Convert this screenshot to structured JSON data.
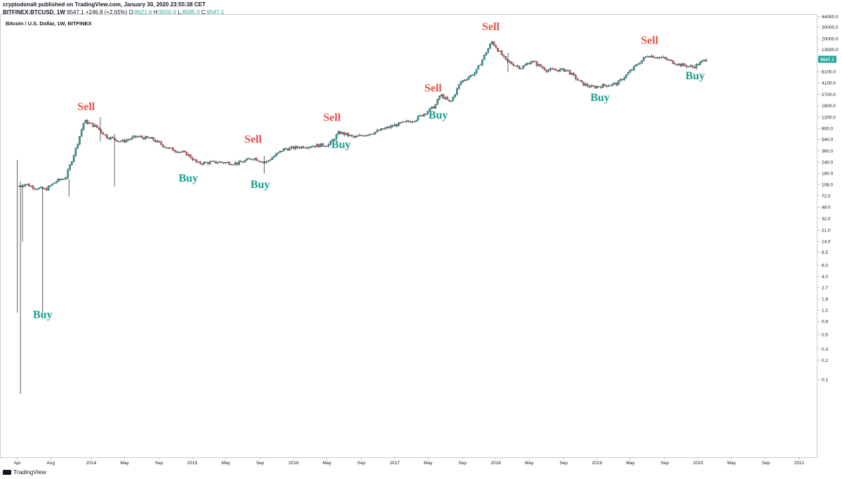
{
  "header": {
    "line1": "cryptodonalt published on TradingView.com, January 30, 2020 23:55:38 CET",
    "symbol": "BITFINEX:BTCUSD, 1W",
    "last": "9547.1",
    "change": "+246.8 (+2.65%)",
    "o_label": "O:",
    "o_val": "8621.6",
    "h_label": "H:",
    "h_val": "9550.0",
    "l_label": "L:",
    "l_val": "8585.0",
    "c_label": "C:",
    "c_val": "9547.1"
  },
  "series_title": "Bitcoin / U.S. Dollar, 1W, BITFINEX",
  "footer": {
    "brand": "TradingView"
  },
  "colors": {
    "up": "#26a69a",
    "down": "#ef5350",
    "buy": "#1a9e8f",
    "sell": "#e5534b",
    "label_bg": "#26a69a"
  },
  "chart_data": {
    "type": "candlestick",
    "title": "Bitcoin / U.S. Dollar, 1W, BITFINEX",
    "scale": "logarithmic",
    "x_ticks": [
      "Apr",
      "Aug",
      "2014",
      "May",
      "Sep",
      "2015",
      "May",
      "Sep",
      "2016",
      "May",
      "Sep",
      "2017",
      "May",
      "Sep",
      "2018",
      "May",
      "Sep",
      "2019",
      "May",
      "Sep",
      "2020",
      "May",
      "Sep",
      "2021"
    ],
    "y_ticks": [
      "44000.0",
      "30000.0",
      "20000.0",
      "13500.0",
      "9547.1",
      "6100.0",
      "4100.0",
      "2700.0",
      "1800.0",
      "1200.0",
      "800.0",
      "540.0",
      "360.0",
      "240.0",
      "160.0",
      "108.0",
      "72.0",
      "48.0",
      "32.0",
      "21.0",
      "14.0",
      "9.5",
      "6.0",
      "4.0",
      "2.7",
      "1.8",
      "1.2",
      "0.8",
      "0.5",
      "0.3",
      "0.2",
      "0.1"
    ],
    "last_price_label": "9547.1",
    "price_path": [
      {
        "t": 2013.27,
        "p": 100
      },
      {
        "t": 2013.35,
        "p": 110
      },
      {
        "t": 2013.45,
        "p": 95
      },
      {
        "t": 2013.55,
        "p": 90
      },
      {
        "t": 2013.65,
        "p": 120
      },
      {
        "t": 2013.75,
        "p": 140
      },
      {
        "t": 2013.85,
        "p": 400
      },
      {
        "t": 2013.93,
        "p": 1050
      },
      {
        "t": 2014.05,
        "p": 850
      },
      {
        "t": 2014.15,
        "p": 600
      },
      {
        "t": 2014.3,
        "p": 500
      },
      {
        "t": 2014.45,
        "p": 600
      },
      {
        "t": 2014.6,
        "p": 550
      },
      {
        "t": 2014.75,
        "p": 400
      },
      {
        "t": 2014.95,
        "p": 320
      },
      {
        "t": 2015.05,
        "p": 230
      },
      {
        "t": 2015.25,
        "p": 240
      },
      {
        "t": 2015.45,
        "p": 230
      },
      {
        "t": 2015.6,
        "p": 280
      },
      {
        "t": 2015.72,
        "p": 235
      },
      {
        "t": 2015.9,
        "p": 380
      },
      {
        "t": 2016.1,
        "p": 420
      },
      {
        "t": 2016.35,
        "p": 450
      },
      {
        "t": 2016.45,
        "p": 700
      },
      {
        "t": 2016.6,
        "p": 580
      },
      {
        "t": 2016.8,
        "p": 700
      },
      {
        "t": 2017.0,
        "p": 900
      },
      {
        "t": 2017.2,
        "p": 1100
      },
      {
        "t": 2017.4,
        "p": 1800
      },
      {
        "t": 2017.45,
        "p": 2700
      },
      {
        "t": 2017.55,
        "p": 2000
      },
      {
        "t": 2017.65,
        "p": 4200
      },
      {
        "t": 2017.8,
        "p": 6000
      },
      {
        "t": 2017.96,
        "p": 18000
      },
      {
        "t": 2018.1,
        "p": 9000
      },
      {
        "t": 2018.25,
        "p": 7000
      },
      {
        "t": 2018.35,
        "p": 9000
      },
      {
        "t": 2018.5,
        "p": 6500
      },
      {
        "t": 2018.7,
        "p": 6500
      },
      {
        "t": 2018.85,
        "p": 4000
      },
      {
        "t": 2018.95,
        "p": 3500
      },
      {
        "t": 2019.2,
        "p": 4000
      },
      {
        "t": 2019.4,
        "p": 8000
      },
      {
        "t": 2019.5,
        "p": 11000
      },
      {
        "t": 2019.65,
        "p": 10000
      },
      {
        "t": 2019.8,
        "p": 8000
      },
      {
        "t": 2019.95,
        "p": 7200
      },
      {
        "t": 2020.08,
        "p": 9547
      }
    ],
    "spike_wicks": [
      {
        "t": 2013.27,
        "low": 1.1,
        "high": 260
      },
      {
        "t": 2013.3,
        "low": 0.06,
        "high": 120
      },
      {
        "t": 2013.32,
        "low": 14,
        "high": 110
      },
      {
        "t": 2013.52,
        "low": 1.1,
        "high": 100
      },
      {
        "t": 2013.78,
        "low": 70,
        "high": 130
      },
      {
        "t": 2014.09,
        "low": 500,
        "high": 1200
      },
      {
        "t": 2014.23,
        "low": 100,
        "high": 650
      },
      {
        "t": 2015.71,
        "low": 160,
        "high": 300
      },
      {
        "t": 2018.12,
        "low": 6000,
        "high": 12000
      }
    ],
    "annotations": [
      {
        "text": "Buy",
        "t": 2013.52,
        "p": 0.9,
        "type": "buy"
      },
      {
        "text": "Sell",
        "t": 2013.95,
        "p": 1550,
        "type": "sell"
      },
      {
        "text": "Buy",
        "t": 2014.96,
        "p": 120,
        "type": "buy"
      },
      {
        "text": "Sell",
        "t": 2015.6,
        "p": 480,
        "type": "sell"
      },
      {
        "text": "Buy",
        "t": 2015.67,
        "p": 95,
        "type": "buy"
      },
      {
        "text": "Sell",
        "t": 2016.38,
        "p": 1050,
        "type": "sell"
      },
      {
        "text": "Buy",
        "t": 2016.47,
        "p": 400,
        "type": "buy"
      },
      {
        "text": "Sell",
        "t": 2017.38,
        "p": 3000,
        "type": "sell"
      },
      {
        "text": "Buy",
        "t": 2017.43,
        "p": 1150,
        "type": "buy"
      },
      {
        "text": "Sell",
        "t": 2017.95,
        "p": 27000,
        "type": "sell"
      },
      {
        "text": "Buy",
        "t": 2019.03,
        "p": 2150,
        "type": "buy"
      },
      {
        "text": "Sell",
        "t": 2019.52,
        "p": 16500,
        "type": "sell"
      },
      {
        "text": "Buy",
        "t": 2019.97,
        "p": 4650,
        "type": "buy"
      }
    ]
  }
}
